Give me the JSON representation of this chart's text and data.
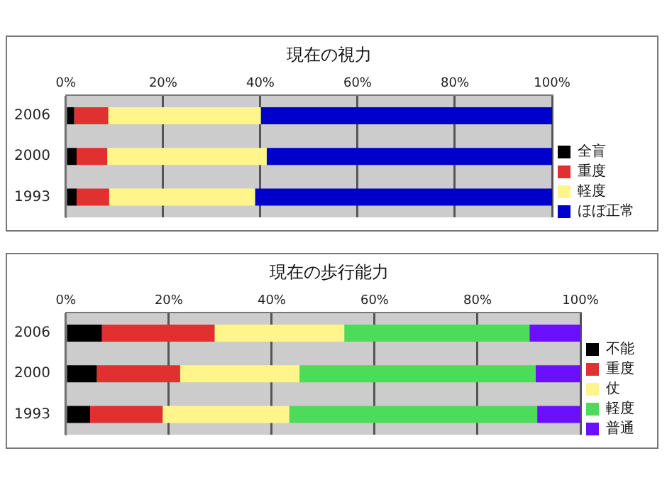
{
  "chart_data": [
    {
      "type": "bar",
      "title": "現在の視力",
      "orientation": "horizontal",
      "stacked": true,
      "categories": [
        "2006",
        "2000",
        "1993"
      ],
      "series": [
        {
          "name": "全盲",
          "color": "#000000",
          "values": [
            1.7,
            2.2,
            2.2
          ]
        },
        {
          "name": "重度",
          "color": "#e03030",
          "values": [
            7.0,
            6.3,
            6.7
          ]
        },
        {
          "name": "軽度",
          "color": "#fff58a",
          "values": [
            31.4,
            32.8,
            30.0
          ]
        },
        {
          "name": "ほぼ正常",
          "color": "#0000cc",
          "values": [
            59.9,
            58.7,
            61.1
          ]
        }
      ],
      "xlim": [
        0,
        100
      ],
      "xticks": [
        {
          "value": 0,
          "label": "0%"
        },
        {
          "value": 20,
          "label": "20%"
        },
        {
          "value": 40,
          "label": "40%"
        },
        {
          "value": 60,
          "label": "60%"
        },
        {
          "value": 80,
          "label": "80%"
        },
        {
          "value": 100,
          "label": "100%"
        }
      ],
      "grid": "x",
      "legend": "bottom right"
    },
    {
      "type": "bar",
      "title": "現在の歩行能力",
      "orientation": "horizontal",
      "stacked": true,
      "categories": [
        "2006",
        "2000",
        "1993"
      ],
      "series": [
        {
          "name": "不能",
          "color": "#000000",
          "values": [
            7.0,
            6.0,
            4.7
          ]
        },
        {
          "name": "重度",
          "color": "#e03030",
          "values": [
            21.9,
            16.2,
            14.1
          ]
        },
        {
          "name": "仗",
          "color": "#fff58a",
          "values": [
            25.2,
            23.2,
            24.6
          ]
        },
        {
          "name": "軽度",
          "color": "#4cdc5a",
          "values": [
            36.0,
            45.9,
            48.2
          ]
        },
        {
          "name": "普通",
          "color": "#6a10ff",
          "values": [
            9.9,
            8.7,
            8.4
          ]
        }
      ],
      "xlim": [
        0,
        100
      ],
      "xticks": [
        {
          "value": 0,
          "label": "0%"
        },
        {
          "value": 20,
          "label": "20%"
        },
        {
          "value": 40,
          "label": "40%"
        },
        {
          "value": 60,
          "label": "60%"
        },
        {
          "value": 80,
          "label": "80%"
        },
        {
          "value": 100,
          "label": "100%"
        }
      ],
      "grid": "x",
      "legend": "bottom right"
    }
  ]
}
